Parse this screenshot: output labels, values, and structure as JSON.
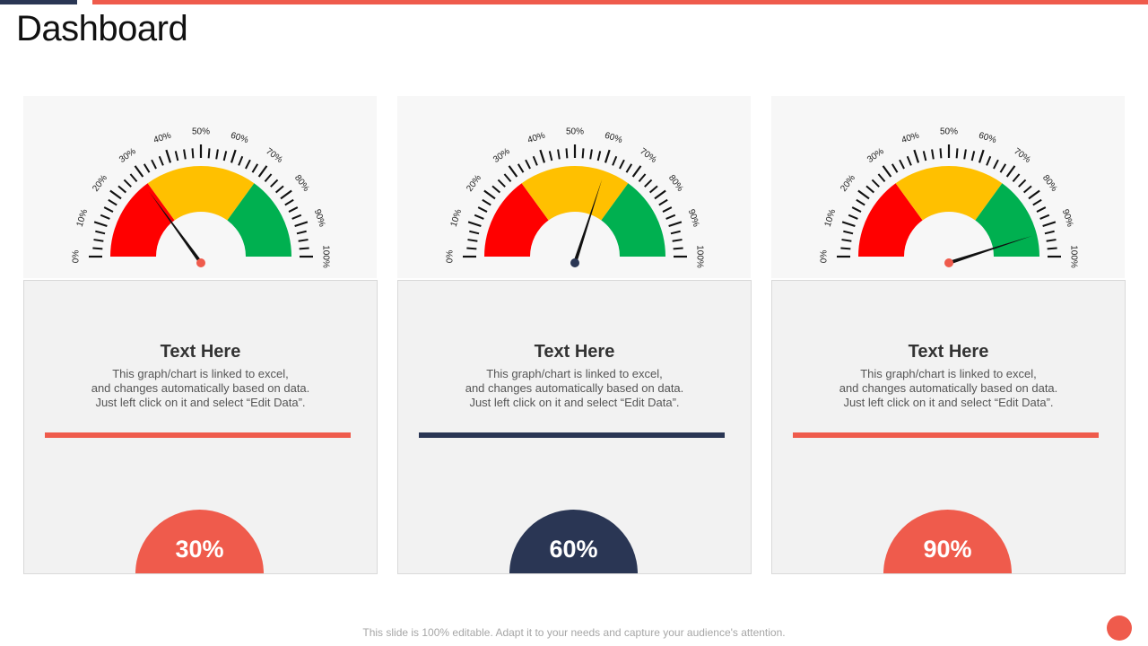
{
  "slide": {
    "title": "Dashboard",
    "footer": "This slide is 100% editable. Adapt it to your needs and capture your audience's attention."
  },
  "colors": {
    "accent_red": "#ef5b4c",
    "accent_navy": "#2a3654",
    "zone_red": "#ff0000",
    "zone_yellow": "#ffc000",
    "zone_green": "#00b050"
  },
  "gauge_scale": [
    "0%",
    "10%",
    "20%",
    "30%",
    "40%",
    "50%",
    "60%",
    "70%",
    "80%",
    "90%",
    "100%"
  ],
  "cards": [
    {
      "heading": "Text Here",
      "body": [
        "This graph/chart is linked to excel,",
        "and changes automatically based on data.",
        "Just left click on it and select “Edit Data”."
      ],
      "value_label": "30%",
      "value": 30,
      "color": "#ef5b4c"
    },
    {
      "heading": "Text Here",
      "body": [
        "This graph/chart is linked to excel,",
        "and changes automatically based on data.",
        "Just left click on it and select “Edit Data”."
      ],
      "value_label": "60%",
      "value": 60,
      "color": "#2a3654"
    },
    {
      "heading": "Text Here",
      "body": [
        "This graph/chart is linked to excel,",
        "and changes automatically based on data.",
        "Just left click on it and select “Edit Data”."
      ],
      "value_label": "90%",
      "value": 90,
      "color": "#ef5b4c"
    }
  ]
}
